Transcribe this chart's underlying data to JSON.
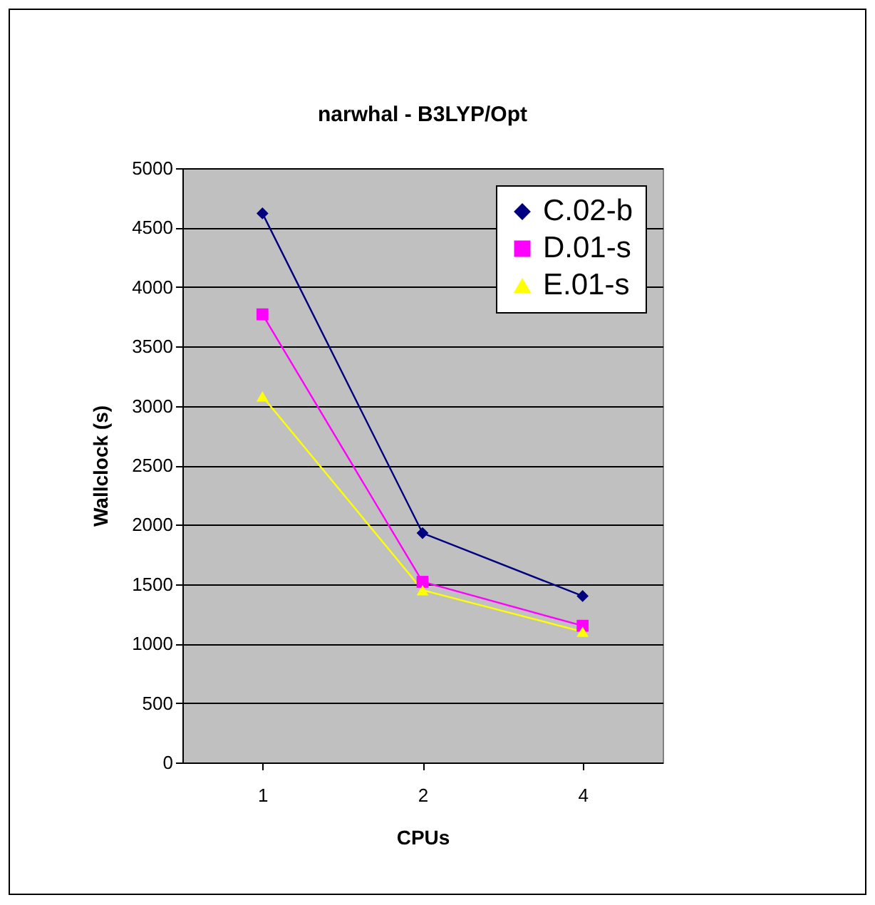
{
  "chart_data": {
    "type": "line",
    "title": "narwhal - B3LYP/Opt",
    "xlabel": "CPUs",
    "ylabel": "Wallclock (s)",
    "categories": [
      "1",
      "2",
      "4"
    ],
    "series": [
      {
        "name": "C.02-b",
        "color": "#000080",
        "marker": "diamond",
        "values": [
          4620,
          1930,
          1400
        ]
      },
      {
        "name": "D.01-s",
        "color": "#ff00ff",
        "marker": "square",
        "values": [
          3770,
          1520,
          1150
        ]
      },
      {
        "name": "E.01-s",
        "color": "#ffff00",
        "marker": "triangle",
        "values": [
          3080,
          1450,
          1100
        ]
      }
    ],
    "ylim": [
      0,
      5000
    ],
    "yticks": [
      0,
      500,
      1000,
      1500,
      2000,
      2500,
      3000,
      3500,
      4000,
      4500,
      5000
    ],
    "grid": "y",
    "legend": "top right"
  }
}
